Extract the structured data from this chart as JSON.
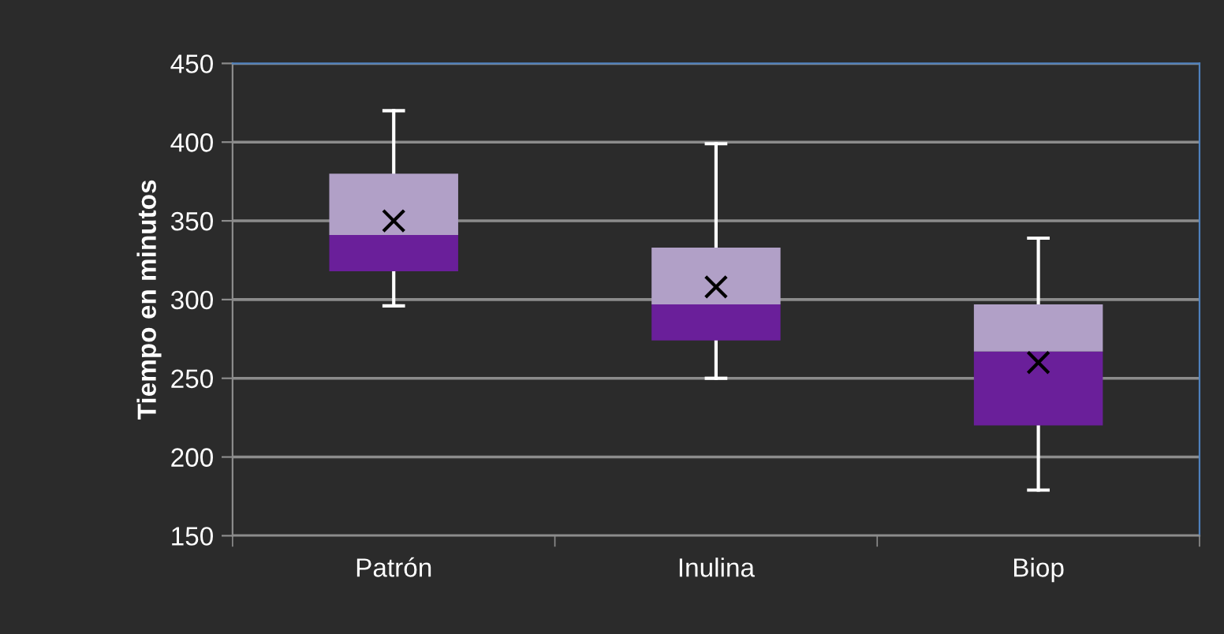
{
  "chart_data": {
    "type": "box",
    "ylabel": "Tiempo en minutos",
    "categories": [
      "Patrón",
      "Inulina",
      "Biop"
    ],
    "series": [
      {
        "color": "#b1a0c7",
        "colors": [
          "#6a1f9a",
          "#6a1f9a",
          "#6a1f9a"
        ],
        "boxes": [
          {
            "low": 296,
            "q1": 318,
            "median": 341,
            "q3": 380,
            "high": 420,
            "mean": 350
          },
          {
            "low": 250,
            "q1": 274,
            "median": 297,
            "q3": 333,
            "high": 399,
            "mean": 308
          },
          {
            "low": 179,
            "q1": 220,
            "median": 267,
            "q3": 297,
            "high": 339,
            "mean": 260
          }
        ]
      }
    ],
    "ylim": [
      150,
      450
    ],
    "yticks": [
      150,
      200,
      250,
      300,
      350,
      400,
      450
    ],
    "grid": "y",
    "marker": "cross"
  }
}
